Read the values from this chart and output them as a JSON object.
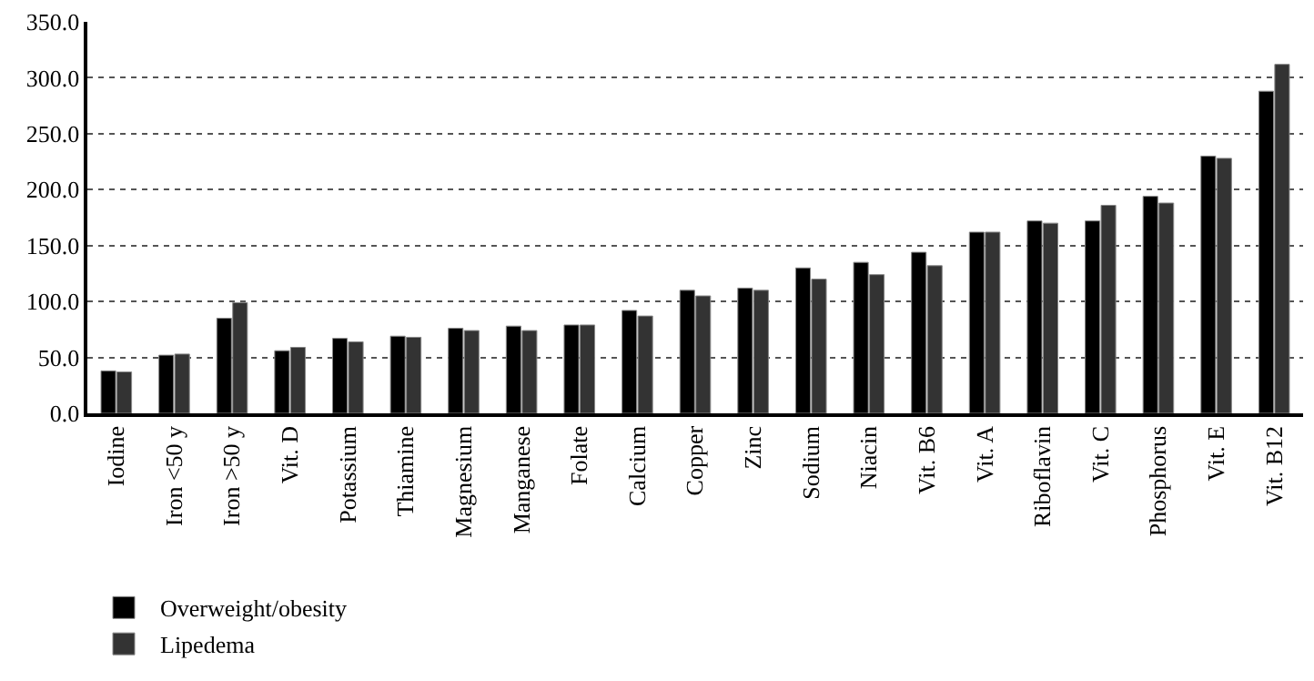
{
  "chart_data": {
    "type": "bar",
    "categories": [
      "Iodine",
      "Iron <50 y",
      "Iron >50 y",
      "Vit. D",
      "Potassium",
      "Thiamine",
      "Magnesium",
      "Manganese",
      "Folate",
      "Calcium",
      "Copper",
      "Zinc",
      "Sodium",
      "Niacin",
      "Vit. B6",
      "Vit. A",
      "Riboflavin",
      "Vit. C",
      "Phosphorus",
      "Vit. E",
      "Vit. B12"
    ],
    "series": [
      {
        "name": "Overweight/obesity",
        "color": "#000000",
        "values": [
          38,
          52,
          85,
          56,
          67,
          69,
          76,
          78,
          79,
          92,
          110,
          112,
          130,
          135,
          144,
          162,
          172,
          172,
          194,
          230,
          288
        ]
      },
      {
        "name": "Lipedema",
        "color": "#333333",
        "values": [
          37,
          53,
          99,
          59,
          64,
          68,
          74,
          74,
          79,
          87,
          105,
          110,
          120,
          124,
          132,
          162,
          170,
          186,
          188,
          228,
          312
        ]
      }
    ],
    "ylim": [
      0,
      350
    ],
    "yticks": [
      {
        "value": 0,
        "label": "0.0"
      },
      {
        "value": 50,
        "label": "50.0"
      },
      {
        "value": 100,
        "label": "100.0"
      },
      {
        "value": 150,
        "label": "150.0"
      },
      {
        "value": 200,
        "label": "200.0"
      },
      {
        "value": 250,
        "label": "250.0"
      },
      {
        "value": 300,
        "label": "300.0"
      },
      {
        "value": 350,
        "label": "350.0"
      }
    ],
    "grid": "y",
    "legend": "bottom left"
  }
}
